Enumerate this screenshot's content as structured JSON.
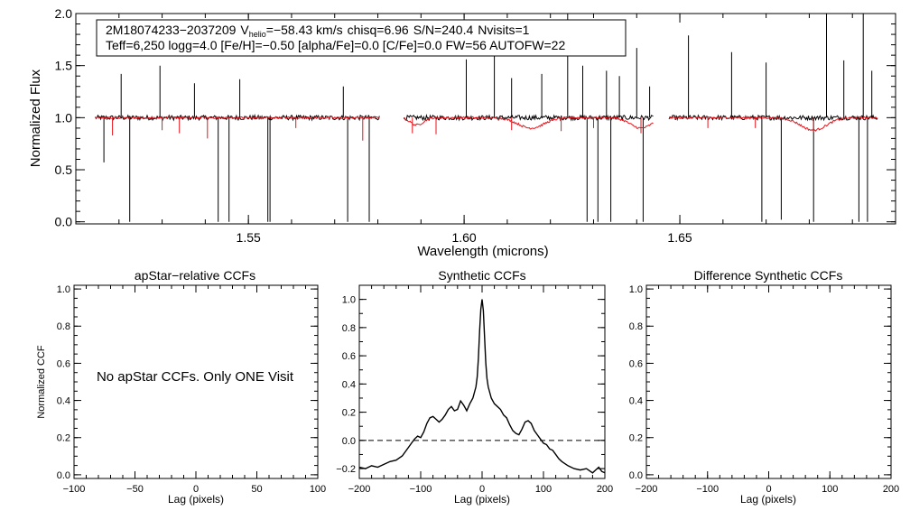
{
  "header": {
    "object": "2M18074233−2037209",
    "vhelio_prefix": "V",
    "vhelio_sub": "helio",
    "vhelio_value": "=−58.43 km/s",
    "chisq": "chisq=6.96",
    "snr": "S/N=240.4",
    "nvisits": "Nvisits=1",
    "params_line": "Teff=6,250 logg=4.0 [Fe/H]=−0.50 [alpha/Fe]=0.0 [C/Fe]=0.0 FW=56 AUTOFW=22"
  },
  "panels": {
    "apstar_message": "No apStar CCFs.  Only ONE Visit"
  },
  "colors": {
    "observed": "#000000",
    "model": "#e8141b",
    "axis": "#000000"
  },
  "chart_data": [
    {
      "id": "spectrum",
      "type": "line",
      "title": "",
      "xlabel": "Wavelength (microns)",
      "ylabel": "Normalized Flux",
      "xlim": [
        1.51,
        1.7
      ],
      "ylim": [
        -0.02,
        2.0
      ],
      "xticks": [
        {
          "v": 1.55,
          "label": "1.55"
        },
        {
          "v": 1.6,
          "label": "1.60"
        },
        {
          "v": 1.65,
          "label": "1.65"
        }
      ],
      "yticks": [
        {
          "v": 0.0,
          "label": "0.0"
        },
        {
          "v": 0.5,
          "label": "0.5"
        },
        {
          "v": 1.0,
          "label": "1.0"
        },
        {
          "v": 1.5,
          "label": "1.5"
        },
        {
          "v": 2.0,
          "label": "2.0"
        }
      ],
      "chips": [
        [
          1.5145,
          1.5805
        ],
        [
          1.586,
          1.644
        ],
        [
          1.6475,
          1.696
        ]
      ],
      "continuum": 1.0,
      "series": [
        {
          "name": "observed",
          "color": "#000000",
          "absorption": [
            [
              1.5165,
              0.57
            ],
            [
              1.5225,
              0.0
            ],
            [
              1.543,
              0.0
            ],
            [
              1.5455,
              0.0
            ],
            [
              1.5545,
              0.0
            ],
            [
              1.555,
              0.0
            ],
            [
              1.573,
              0.0
            ],
            [
              1.578,
              0.0
            ],
            [
              1.6285,
              0.0
            ],
            [
              1.631,
              0.0
            ],
            [
              1.634,
              0.0
            ],
            [
              1.6415,
              0.0
            ],
            [
              1.669,
              0.0
            ],
            [
              1.6735,
              0.02
            ],
            [
              1.681,
              0.0
            ],
            [
              1.6915,
              0.0
            ],
            [
              1.6935,
              0.0
            ]
          ],
          "emission": [
            [
              1.5205,
              1.42
            ],
            [
              1.5295,
              1.5
            ],
            [
              1.5375,
              1.33
            ],
            [
              1.548,
              1.37
            ],
            [
              1.572,
              1.3
            ],
            [
              1.6005,
              1.56
            ],
            [
              1.607,
              1.67
            ],
            [
              1.611,
              1.38
            ],
            [
              1.618,
              1.42
            ],
            [
              1.624,
              2.0
            ],
            [
              1.6275,
              1.5
            ],
            [
              1.633,
              1.45
            ],
            [
              1.636,
              1.4
            ],
            [
              1.64,
              1.67
            ],
            [
              1.643,
              1.3
            ],
            [
              1.652,
              1.79
            ],
            [
              1.662,
              1.63
            ],
            [
              1.67,
              1.53
            ],
            [
              1.684,
              2.0
            ],
            [
              1.688,
              1.55
            ],
            [
              1.6925,
              2.0
            ],
            [
              1.6945,
              1.45
            ]
          ]
        },
        {
          "name": "model",
          "color": "#e8141b",
          "absorption": [
            [
              1.5185,
              0.83
            ],
            [
              1.53,
              0.88
            ],
            [
              1.534,
              0.85
            ],
            [
              1.5405,
              0.8
            ],
            [
              1.561,
              0.9
            ],
            [
              1.5765,
              0.78
            ],
            [
              1.588,
              0.85
            ],
            [
              1.5935,
              0.84
            ],
            [
              1.611,
              0.88
            ],
            [
              1.6225,
              0.87
            ],
            [
              1.63,
              0.9
            ],
            [
              1.641,
              0.85
            ],
            [
              1.6565,
              0.9
            ],
            [
              1.6675,
              0.9
            ],
            [
              1.681,
              0.86
            ]
          ],
          "broad": [
            [
              1.589,
              0.93,
              0.0015
            ],
            [
              1.6155,
              0.9,
              0.003
            ],
            [
              1.641,
              0.9,
              0.0025
            ],
            [
              1.681,
              0.88,
              0.003
            ]
          ]
        }
      ]
    },
    {
      "id": "apstar_ccf",
      "type": "line",
      "title": "apStar−relative CCFs",
      "xlabel": "Lag (pixels)",
      "ylabel": "Normalized CCF",
      "xlim": [
        -100,
        100
      ],
      "ylim": [
        -0.02,
        1.02
      ],
      "xticks": [
        {
          "v": -100,
          "label": "−100"
        },
        {
          "v": -50,
          "label": "−50"
        },
        {
          "v": 0,
          "label": "0"
        },
        {
          "v": 50,
          "label": "50"
        },
        {
          "v": 100,
          "label": "100"
        }
      ],
      "yticks": [
        {
          "v": 0.0,
          "label": "0.0"
        },
        {
          "v": 0.2,
          "label": "0.2"
        },
        {
          "v": 0.4,
          "label": "0.4"
        },
        {
          "v": 0.6,
          "label": "0.6"
        },
        {
          "v": 0.8,
          "label": "0.8"
        },
        {
          "v": 1.0,
          "label": "1.0"
        }
      ],
      "series": []
    },
    {
      "id": "synthetic_ccf",
      "type": "line",
      "title": "Synthetic CCFs",
      "xlabel": "Lag (pixels)",
      "ylabel": "",
      "xlim": [
        -200,
        200
      ],
      "ylim": [
        -0.27,
        1.1
      ],
      "xticks": [
        {
          "v": -200,
          "label": "−200"
        },
        {
          "v": -100,
          "label": "−100"
        },
        {
          "v": 0,
          "label": "0"
        },
        {
          "v": 100,
          "label": "100"
        },
        {
          "v": 200,
          "label": "200"
        }
      ],
      "yticks": [
        {
          "v": -0.2,
          "label": "−0.2"
        },
        {
          "v": 0.0,
          "label": "0.0"
        },
        {
          "v": 0.2,
          "label": "0.2"
        },
        {
          "v": 0.4,
          "label": "0.4"
        },
        {
          "v": 0.6,
          "label": "0.6"
        },
        {
          "v": 0.8,
          "label": "0.8"
        },
        {
          "v": 1.0,
          "label": "1.0"
        }
      ],
      "zero_line": 0.0,
      "series": [
        {
          "name": "ccf",
          "color": "#000000",
          "x": [
            -200,
            -190,
            -180,
            -170,
            -160,
            -150,
            -140,
            -130,
            -120,
            -115,
            -110,
            -105,
            -100,
            -95,
            -90,
            -85,
            -80,
            -75,
            -70,
            -65,
            -60,
            -55,
            -50,
            -45,
            -40,
            -35,
            -30,
            -25,
            -20,
            -15,
            -10,
            -8,
            -6,
            -4,
            -2,
            0,
            2,
            4,
            6,
            8,
            10,
            15,
            20,
            25,
            30,
            35,
            40,
            45,
            50,
            55,
            60,
            65,
            70,
            75,
            80,
            85,
            90,
            95,
            100,
            105,
            110,
            115,
            120,
            125,
            130,
            140,
            150,
            160,
            170,
            180,
            185,
            190,
            195,
            200
          ],
          "y": [
            -0.19,
            -0.2,
            -0.18,
            -0.19,
            -0.17,
            -0.15,
            -0.14,
            -0.11,
            -0.05,
            -0.02,
            0.01,
            0.03,
            0.02,
            0.06,
            0.12,
            0.16,
            0.17,
            0.15,
            0.13,
            0.15,
            0.18,
            0.22,
            0.24,
            0.21,
            0.22,
            0.28,
            0.25,
            0.21,
            0.26,
            0.3,
            0.38,
            0.45,
            0.58,
            0.78,
            0.93,
            1.0,
            0.92,
            0.74,
            0.55,
            0.44,
            0.38,
            0.3,
            0.26,
            0.24,
            0.22,
            0.18,
            0.16,
            0.11,
            0.07,
            0.05,
            0.04,
            0.08,
            0.13,
            0.14,
            0.12,
            0.07,
            0.04,
            0.01,
            -0.02,
            -0.03,
            -0.06,
            -0.07,
            -0.1,
            -0.13,
            -0.15,
            -0.18,
            -0.2,
            -0.21,
            -0.2,
            -0.23,
            -0.21,
            -0.19,
            -0.22,
            -0.23
          ]
        }
      ]
    },
    {
      "id": "difference_ccf",
      "type": "line",
      "title": "Difference Synthetic CCFs",
      "xlabel": "Lag (pixels)",
      "ylabel": "",
      "xlim": [
        -200,
        200
      ],
      "ylim": [
        -0.02,
        1.02
      ],
      "xticks": [
        {
          "v": -200,
          "label": "−200"
        },
        {
          "v": -100,
          "label": "−100"
        },
        {
          "v": 0,
          "label": "0"
        },
        {
          "v": 100,
          "label": "100"
        },
        {
          "v": 200,
          "label": "200"
        }
      ],
      "yticks": [
        {
          "v": 0.0,
          "label": "0.0"
        },
        {
          "v": 0.2,
          "label": "0.2"
        },
        {
          "v": 0.4,
          "label": "0.4"
        },
        {
          "v": 0.6,
          "label": "0.6"
        },
        {
          "v": 0.8,
          "label": "0.8"
        },
        {
          "v": 1.0,
          "label": "1.0"
        }
      ],
      "series": []
    }
  ]
}
